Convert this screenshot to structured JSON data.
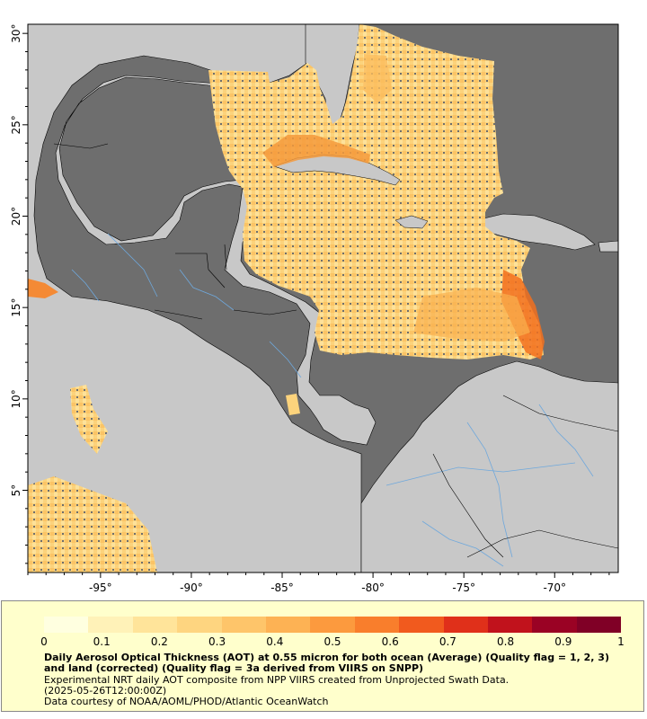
{
  "map": {
    "lon_ticks": [
      "-95°",
      "-90°",
      "-85°",
      "-80°",
      "-75°",
      "-70°"
    ],
    "lat_ticks": [
      "5°",
      "10°",
      "15°",
      "20°",
      "25°",
      "30°"
    ],
    "lon_range": [
      -99,
      -66.5
    ],
    "lat_range": [
      0.5,
      30.5
    ],
    "colors": {
      "land": "#c8c8c8",
      "ocean_nodata": "#6e6e6e",
      "borders": "#000000",
      "rivers": "#6fa8dc"
    }
  },
  "legend": {
    "colorbar_ticks": [
      "0",
      "0.1",
      "0.2",
      "0.3",
      "0.4",
      "0.5",
      "0.6",
      "0.7",
      "0.8",
      "0.9",
      "1"
    ],
    "colorbar_range": [
      0,
      1
    ],
    "colorbar_colors": [
      "#ffffe0",
      "#fff2b8",
      "#ffe49a",
      "#fed580",
      "#fec56a",
      "#fdb254",
      "#fc9a3e",
      "#f97e2c",
      "#f15a1e",
      "#e0301a",
      "#c1121c",
      "#9a0224",
      "#800026"
    ],
    "title": "Daily Aerosol Optical Thickness (AOT) at 0.55 micron for both ocean (Average) (Quality flag = 1, 2, 3) and land (corrected) (Quality flag = 3a derived from VIIRS on SNPP)",
    "line2": "Experimental NRT daily AOT composite from NPP VIIRS created from Unprojected Swath Data.",
    "line3": "(2025-05-26T12:00:00Z)",
    "line4": "Data courtesy of NOAA/AOML/PHOD/Atlantic OceanWatch"
  }
}
